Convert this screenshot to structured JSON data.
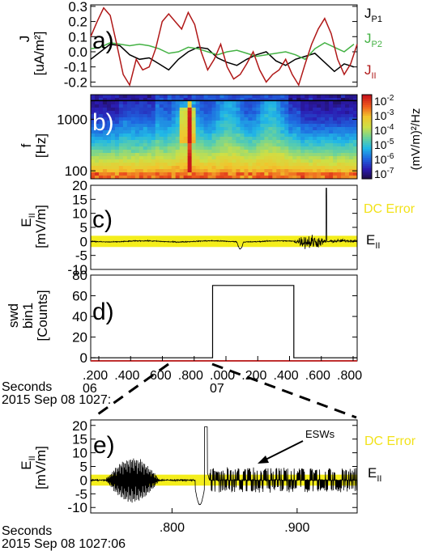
{
  "colors": {
    "jp1": "#000000",
    "jp2": "#44b244",
    "jpar": "#b01818",
    "dc_band": "#f4ee1c",
    "dc_label": "#f2e21a",
    "axis": "#000000",
    "timeline": "#c03030"
  },
  "chart_data": [
    {
      "panel": "a",
      "type": "line",
      "panel_label": "a)",
      "ylabel_main": "J",
      "ylabel_unit": "[uA/m²]",
      "ylim": [
        -0.23,
        0.31
      ],
      "yticks": [
        "0.3",
        "0.2",
        "0.1",
        "0.0",
        "-0.1",
        "-0.2"
      ],
      "ytick_values": [
        0.3,
        0.2,
        0.1,
        0.0,
        -0.1,
        -0.2
      ],
      "xlim": [
        0.1,
        0.92
      ],
      "legend_placement": "right",
      "series": [
        {
          "name": "J",
          "name_sub": "P1",
          "color_key": "jp1",
          "x": [
            0.1,
            0.13,
            0.16,
            0.19,
            0.22,
            0.25,
            0.28,
            0.31,
            0.34,
            0.37,
            0.4,
            0.43,
            0.46,
            0.49,
            0.52,
            0.55,
            0.58,
            0.61,
            0.64,
            0.67,
            0.7,
            0.73,
            0.76,
            0.79,
            0.82,
            0.85,
            0.88,
            0.91
          ],
          "y": [
            -0.05,
            0.0,
            0.05,
            0.04,
            -0.02,
            -0.05,
            -0.04,
            -0.08,
            -0.12,
            -0.05,
            0.0,
            0.03,
            0.02,
            -0.04,
            -0.07,
            -0.09,
            -0.05,
            -0.02,
            0.0,
            -0.06,
            -0.09,
            -0.05,
            -0.03,
            -0.01,
            -0.07,
            -0.13,
            -0.08,
            -0.1
          ]
        },
        {
          "name": "J",
          "name_sub": "P2",
          "color_key": "jp2",
          "x": [
            0.1,
            0.13,
            0.16,
            0.19,
            0.22,
            0.25,
            0.28,
            0.31,
            0.34,
            0.37,
            0.4,
            0.43,
            0.46,
            0.49,
            0.52,
            0.55,
            0.58,
            0.61,
            0.64,
            0.67,
            0.7,
            0.73,
            0.76,
            0.79,
            0.82,
            0.85,
            0.88,
            0.91
          ],
          "y": [
            0.02,
            0.03,
            0.06,
            0.05,
            0.04,
            0.05,
            0.04,
            0.02,
            -0.01,
            0.0,
            0.03,
            0.02,
            0.0,
            -0.02,
            0.0,
            0.01,
            -0.01,
            -0.03,
            -0.02,
            -0.01,
            0.0,
            -0.02,
            -0.05,
            0.02,
            0.06,
            0.03,
            0.0,
            0.05
          ]
        },
        {
          "name": "J",
          "name_sub": "II",
          "color_key": "jpar",
          "x": [
            0.1,
            0.12,
            0.14,
            0.16,
            0.18,
            0.2,
            0.22,
            0.24,
            0.26,
            0.28,
            0.3,
            0.32,
            0.34,
            0.36,
            0.38,
            0.4,
            0.42,
            0.44,
            0.46,
            0.48,
            0.5,
            0.52,
            0.54,
            0.56,
            0.58,
            0.6,
            0.62,
            0.64,
            0.66,
            0.68,
            0.7,
            0.72,
            0.74,
            0.76,
            0.78,
            0.8,
            0.82,
            0.84,
            0.86,
            0.88,
            0.9,
            0.92
          ],
          "y": [
            0.1,
            0.2,
            0.29,
            0.24,
            0.05,
            -0.15,
            -0.22,
            -0.05,
            -0.12,
            -0.1,
            0.02,
            0.2,
            0.25,
            0.2,
            0.15,
            0.26,
            0.18,
            0.0,
            -0.12,
            -0.05,
            0.05,
            -0.1,
            -0.18,
            -0.15,
            -0.08,
            0.0,
            -0.12,
            -0.2,
            -0.15,
            -0.12,
            -0.05,
            -0.15,
            -0.22,
            -0.08,
            0.05,
            0.15,
            0.22,
            0.12,
            -0.05,
            -0.15,
            -0.08,
            0.05
          ]
        }
      ]
    },
    {
      "panel": "b",
      "type": "heatmap",
      "panel_label": "b)",
      "ylabel_main": "f",
      "ylabel_unit": "[Hz]",
      "yscale": "log",
      "ylim": [
        70,
        3000
      ],
      "yticks": [
        "1000",
        "100"
      ],
      "ytick_values": [
        1000,
        100
      ],
      "reference_line_hz": 2300,
      "colorbar": {
        "scale": "log",
        "range": [
          1e-07,
          0.01
        ],
        "tick_labels": [
          {
            "base": "10",
            "exp": "-2"
          },
          {
            "base": "10",
            "exp": "-3"
          },
          {
            "base": "10",
            "exp": "-4"
          },
          {
            "base": "10",
            "exp": "-5"
          },
          {
            "base": "10",
            "exp": "-6"
          },
          {
            "base": "10",
            "exp": "-7"
          }
        ],
        "label": "(mV/m)²/Hz",
        "colors": [
          "#1c0a3a",
          "#2b1bb0",
          "#1f66e0",
          "#21b8e6",
          "#6cd39a",
          "#cde046",
          "#f2c42c",
          "#ef5a1e",
          "#c8141c"
        ]
      }
    },
    {
      "panel": "c",
      "type": "line",
      "panel_label": "c)",
      "ylabel_main": "E",
      "ylabel_sub": "II",
      "ylabel_unit": "[mV/m]",
      "ylim": [
        -10,
        20
      ],
      "yticks": [
        "20",
        "15",
        "10",
        "5",
        "0",
        "-5",
        "-10"
      ],
      "ytick_values": [
        20,
        15,
        10,
        5,
        0,
        -5,
        -10
      ],
      "dc_error_band": [
        -2,
        2
      ],
      "dc_label": "DC Error",
      "series_label_main": "E",
      "series_label_sub": "II",
      "spike_x": 0.825,
      "spike_max": 19.0,
      "burst_x_range": [
        0.72,
        0.83
      ]
    },
    {
      "panel": "d",
      "type": "line",
      "panel_label": "d)",
      "ylabel_lines": [
        "swd",
        "bin1",
        "[Counts]"
      ],
      "ylim": [
        -3,
        80
      ],
      "yticks": [
        "80",
        "60",
        "40",
        "20",
        "0"
      ],
      "ytick_values": [
        80,
        60,
        40,
        20,
        0
      ],
      "xlim": [
        0.1,
        0.92
      ],
      "x": [
        0.1,
        0.475,
        0.475,
        0.725,
        0.725,
        0.92
      ],
      "y": [
        0,
        0,
        70,
        70,
        0,
        0
      ],
      "x_tick_values": [
        0.2,
        0.4,
        0.6,
        0.8,
        1.0,
        1.2,
        1.4,
        1.6,
        1.8
      ],
      "x_tick_labels": [
        ".200",
        ".400",
        ".600",
        ".800",
        ".000",
        ".200",
        ".400",
        ".600",
        ".800"
      ],
      "x_major_labels": [
        {
          "label": "06",
          "x": 0.2
        },
        {
          "label": "07",
          "x": 1.0
        }
      ],
      "xlabel_line1": "Seconds",
      "xlabel_line2": "2015 Sep 08 1027:"
    },
    {
      "panel": "e",
      "type": "line",
      "panel_label": "e)",
      "ylabel_main": "E",
      "ylabel_sub": "II",
      "ylabel_unit": "[mV/m]",
      "ylim": [
        -12,
        22
      ],
      "yticks": [
        "20",
        "15",
        "10",
        "5",
        "0",
        "-5",
        "-10"
      ],
      "ytick_values": [
        20,
        15,
        10,
        5,
        0,
        -5,
        -10
      ],
      "xlim": [
        0.735,
        0.948
      ],
      "x_tick_labels": [
        ".800",
        ".900"
      ],
      "x_tick_values": [
        0.8,
        0.9
      ],
      "dc_error_band": [
        -2,
        2
      ],
      "dc_label": "DC Error",
      "series_label_main": "E",
      "series_label_sub": "II",
      "annotation": "ESWs",
      "spike_x": 0.827,
      "spike_max": 19.5,
      "spike_min": -9.0,
      "xlabel_line1": "Seconds",
      "xlabel_line2": "2015 Sep 08 1027:06"
    }
  ]
}
